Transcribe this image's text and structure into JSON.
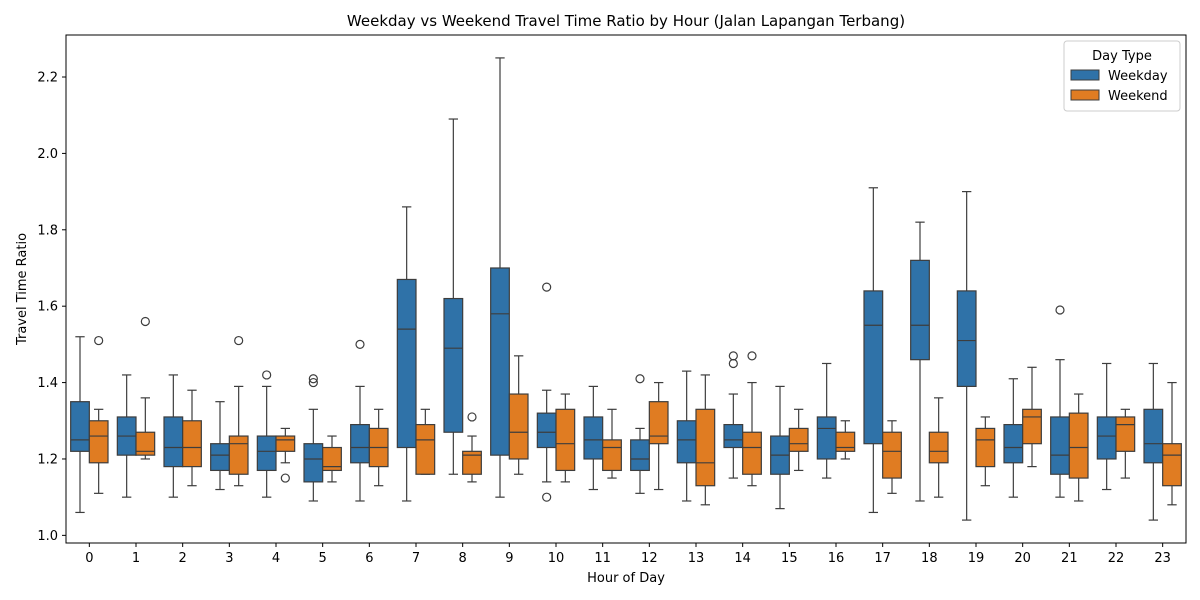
{
  "chart_data": {
    "type": "box",
    "title": "Weekday vs Weekend Travel Time Ratio by Hour (Jalan Lapangan Terbang)",
    "xlabel": "Hour of Day",
    "ylabel": "Travel Time Ratio",
    "ylim": [
      0.98,
      2.31
    ],
    "yticks": [
      1.0,
      1.2,
      1.4,
      1.6,
      1.8,
      2.0,
      2.2
    ],
    "ytick_labels": [
      "1.0",
      "1.2",
      "1.4",
      "1.6",
      "1.8",
      "2.0",
      "2.2"
    ],
    "categories": [
      "0",
      "1",
      "2",
      "3",
      "4",
      "5",
      "6",
      "7",
      "8",
      "9",
      "10",
      "11",
      "12",
      "13",
      "14",
      "15",
      "16",
      "17",
      "18",
      "19",
      "20",
      "21",
      "22",
      "23"
    ],
    "grid": false,
    "legend": {
      "title": "Day Type",
      "position": "top-right"
    },
    "series": [
      {
        "name": "Weekday",
        "color": "#2f72a8",
        "boxes": [
          {
            "whislo": 1.06,
            "q1": 1.22,
            "med": 1.25,
            "q3": 1.35,
            "whishi": 1.52,
            "fliers": []
          },
          {
            "whislo": 1.1,
            "q1": 1.21,
            "med": 1.26,
            "q3": 1.31,
            "whishi": 1.42,
            "fliers": []
          },
          {
            "whislo": 1.1,
            "q1": 1.18,
            "med": 1.23,
            "q3": 1.31,
            "whishi": 1.42,
            "fliers": []
          },
          {
            "whislo": 1.12,
            "q1": 1.17,
            "med": 1.21,
            "q3": 1.24,
            "whishi": 1.35,
            "fliers": []
          },
          {
            "whislo": 1.1,
            "q1": 1.17,
            "med": 1.22,
            "q3": 1.26,
            "whishi": 1.39,
            "fliers": [
              1.42
            ]
          },
          {
            "whislo": 1.09,
            "q1": 1.14,
            "med": 1.2,
            "q3": 1.24,
            "whishi": 1.33,
            "fliers": [
              1.4,
              1.41
            ]
          },
          {
            "whislo": 1.09,
            "q1": 1.19,
            "med": 1.23,
            "q3": 1.29,
            "whishi": 1.39,
            "fliers": [
              1.5
            ]
          },
          {
            "whislo": 1.09,
            "q1": 1.23,
            "med": 1.54,
            "q3": 1.67,
            "whishi": 1.86,
            "fliers": []
          },
          {
            "whislo": 1.16,
            "q1": 1.27,
            "med": 1.49,
            "q3": 1.62,
            "whishi": 2.09,
            "fliers": []
          },
          {
            "whislo": 1.1,
            "q1": 1.21,
            "med": 1.58,
            "q3": 1.7,
            "whishi": 2.25,
            "fliers": []
          },
          {
            "whislo": 1.14,
            "q1": 1.23,
            "med": 1.27,
            "q3": 1.32,
            "whishi": 1.38,
            "fliers": [
              1.1,
              1.65
            ]
          },
          {
            "whislo": 1.12,
            "q1": 1.2,
            "med": 1.25,
            "q3": 1.31,
            "whishi": 1.39,
            "fliers": []
          },
          {
            "whislo": 1.11,
            "q1": 1.17,
            "med": 1.2,
            "q3": 1.25,
            "whishi": 1.28,
            "fliers": [
              1.41
            ]
          },
          {
            "whislo": 1.09,
            "q1": 1.19,
            "med": 1.25,
            "q3": 1.3,
            "whishi": 1.43,
            "fliers": []
          },
          {
            "whislo": 1.15,
            "q1": 1.23,
            "med": 1.25,
            "q3": 1.29,
            "whishi": 1.37,
            "fliers": [
              1.45,
              1.47
            ]
          },
          {
            "whislo": 1.07,
            "q1": 1.16,
            "med": 1.21,
            "q3": 1.26,
            "whishi": 1.39,
            "fliers": []
          },
          {
            "whislo": 1.15,
            "q1": 1.2,
            "med": 1.28,
            "q3": 1.31,
            "whishi": 1.45,
            "fliers": []
          },
          {
            "whislo": 1.06,
            "q1": 1.24,
            "med": 1.55,
            "q3": 1.64,
            "whishi": 1.91,
            "fliers": []
          },
          {
            "whislo": 1.09,
            "q1": 1.46,
            "med": 1.55,
            "q3": 1.72,
            "whishi": 1.82,
            "fliers": []
          },
          {
            "whislo": 1.04,
            "q1": 1.39,
            "med": 1.51,
            "q3": 1.64,
            "whishi": 1.9,
            "fliers": []
          },
          {
            "whislo": 1.1,
            "q1": 1.19,
            "med": 1.23,
            "q3": 1.29,
            "whishi": 1.41,
            "fliers": []
          },
          {
            "whislo": 1.1,
            "q1": 1.16,
            "med": 1.21,
            "q3": 1.31,
            "whishi": 1.46,
            "fliers": [
              1.59
            ]
          },
          {
            "whislo": 1.12,
            "q1": 1.2,
            "med": 1.26,
            "q3": 1.31,
            "whishi": 1.45,
            "fliers": []
          },
          {
            "whislo": 1.04,
            "q1": 1.19,
            "med": 1.24,
            "q3": 1.33,
            "whishi": 1.45,
            "fliers": []
          }
        ]
      },
      {
        "name": "Weekend",
        "color": "#e07c22",
        "boxes": [
          {
            "whislo": 1.11,
            "q1": 1.19,
            "med": 1.26,
            "q3": 1.3,
            "whishi": 1.33,
            "fliers": [
              1.51
            ]
          },
          {
            "whislo": 1.2,
            "q1": 1.21,
            "med": 1.22,
            "q3": 1.27,
            "whishi": 1.36,
            "fliers": [
              1.56
            ]
          },
          {
            "whislo": 1.13,
            "q1": 1.18,
            "med": 1.23,
            "q3": 1.3,
            "whishi": 1.38,
            "fliers": []
          },
          {
            "whislo": 1.13,
            "q1": 1.16,
            "med": 1.24,
            "q3": 1.26,
            "whishi": 1.39,
            "fliers": [
              1.51
            ]
          },
          {
            "whislo": 1.19,
            "q1": 1.22,
            "med": 1.25,
            "q3": 1.26,
            "whishi": 1.28,
            "fliers": [
              1.15
            ]
          },
          {
            "whislo": 1.14,
            "q1": 1.17,
            "med": 1.18,
            "q3": 1.23,
            "whishi": 1.26,
            "fliers": []
          },
          {
            "whislo": 1.13,
            "q1": 1.18,
            "med": 1.23,
            "q3": 1.28,
            "whishi": 1.33,
            "fliers": []
          },
          {
            "whislo": 1.16,
            "q1": 1.16,
            "med": 1.25,
            "q3": 1.29,
            "whishi": 1.33,
            "fliers": []
          },
          {
            "whislo": 1.14,
            "q1": 1.16,
            "med": 1.21,
            "q3": 1.22,
            "whishi": 1.26,
            "fliers": [
              1.31
            ]
          },
          {
            "whislo": 1.16,
            "q1": 1.2,
            "med": 1.27,
            "q3": 1.37,
            "whishi": 1.47,
            "fliers": []
          },
          {
            "whislo": 1.14,
            "q1": 1.17,
            "med": 1.24,
            "q3": 1.33,
            "whishi": 1.37,
            "fliers": []
          },
          {
            "whislo": 1.15,
            "q1": 1.17,
            "med": 1.23,
            "q3": 1.25,
            "whishi": 1.33,
            "fliers": []
          },
          {
            "whislo": 1.12,
            "q1": 1.24,
            "med": 1.26,
            "q3": 1.35,
            "whishi": 1.4,
            "fliers": []
          },
          {
            "whislo": 1.08,
            "q1": 1.13,
            "med": 1.19,
            "q3": 1.33,
            "whishi": 1.42,
            "fliers": []
          },
          {
            "whislo": 1.13,
            "q1": 1.16,
            "med": 1.23,
            "q3": 1.27,
            "whishi": 1.4,
            "fliers": [
              1.47
            ]
          },
          {
            "whislo": 1.17,
            "q1": 1.22,
            "med": 1.24,
            "q3": 1.28,
            "whishi": 1.33,
            "fliers": []
          },
          {
            "whislo": 1.2,
            "q1": 1.22,
            "med": 1.23,
            "q3": 1.27,
            "whishi": 1.3,
            "fliers": []
          },
          {
            "whislo": 1.11,
            "q1": 1.15,
            "med": 1.22,
            "q3": 1.27,
            "whishi": 1.3,
            "fliers": []
          },
          {
            "whislo": 1.1,
            "q1": 1.19,
            "med": 1.22,
            "q3": 1.27,
            "whishi": 1.36,
            "fliers": []
          },
          {
            "whislo": 1.13,
            "q1": 1.18,
            "med": 1.25,
            "q3": 1.28,
            "whishi": 1.31,
            "fliers": []
          },
          {
            "whislo": 1.18,
            "q1": 1.24,
            "med": 1.31,
            "q3": 1.33,
            "whishi": 1.44,
            "fliers": []
          },
          {
            "whislo": 1.09,
            "q1": 1.15,
            "med": 1.23,
            "q3": 1.32,
            "whishi": 1.37,
            "fliers": []
          },
          {
            "whislo": 1.15,
            "q1": 1.22,
            "med": 1.29,
            "q3": 1.31,
            "whishi": 1.33,
            "fliers": []
          },
          {
            "whislo": 1.08,
            "q1": 1.13,
            "med": 1.21,
            "q3": 1.24,
            "whishi": 1.4,
            "fliers": []
          }
        ]
      }
    ]
  }
}
